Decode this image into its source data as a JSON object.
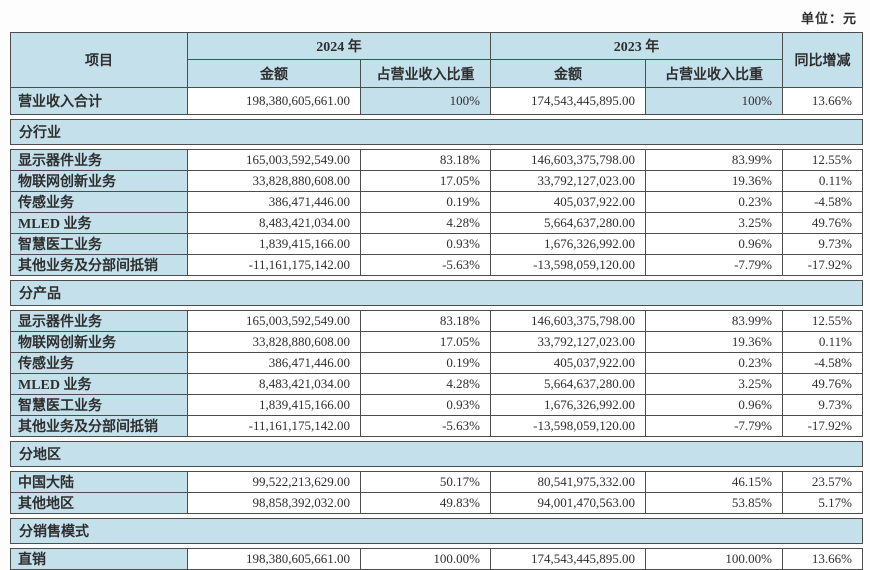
{
  "unit_label": "单位：元",
  "colors": {
    "accent_blue": "#c4e0eb",
    "border": "#4d4d4d"
  },
  "table": {
    "header": {
      "item": "项目",
      "year_2024": "2024 年",
      "year_2023": "2023 年",
      "amount": "金额",
      "proportion": "占营业收入比重",
      "yoy": "同比增减"
    },
    "rows": [
      {
        "type": "data",
        "tall": true,
        "hl": true,
        "label": "营业收入合计",
        "a24": "198,380,605,661.00",
        "p24": "100%",
        "a23": "174,543,445,895.00",
        "p23": "100%",
        "yoy": "13.66%"
      },
      {
        "type": "section",
        "label": "分行业"
      },
      {
        "type": "data",
        "label": "显示器件业务",
        "a24": "165,003,592,549.00",
        "p24": "83.18%",
        "a23": "146,603,375,798.00",
        "p23": "83.99%",
        "yoy": "12.55%"
      },
      {
        "type": "data",
        "label": "物联网创新业务",
        "a24": "33,828,880,608.00",
        "p24": "17.05%",
        "a23": "33,792,127,023.00",
        "p23": "19.36%",
        "yoy": "0.11%"
      },
      {
        "type": "data",
        "label": "传感业务",
        "a24": "386,471,446.00",
        "p24": "0.19%",
        "a23": "405,037,922.00",
        "p23": "0.23%",
        "yoy": "-4.58%"
      },
      {
        "type": "data",
        "label": "MLED 业务",
        "a24": "8,483,421,034.00",
        "p24": "4.28%",
        "a23": "5,664,637,280.00",
        "p23": "3.25%",
        "yoy": "49.76%"
      },
      {
        "type": "data",
        "label": "智慧医工业务",
        "a24": "1,839,415,166.00",
        "p24": "0.93%",
        "a23": "1,676,326,992.00",
        "p23": "0.96%",
        "yoy": "9.73%"
      },
      {
        "type": "data",
        "label": "其他业务及分部间抵销",
        "a24": "-11,161,175,142.00",
        "p24": "-5.63%",
        "a23": "-13,598,059,120.00",
        "p23": "-7.79%",
        "yoy": "-17.92%"
      },
      {
        "type": "section",
        "label": "分产品"
      },
      {
        "type": "data",
        "label": "显示器件业务",
        "a24": "165,003,592,549.00",
        "p24": "83.18%",
        "a23": "146,603,375,798.00",
        "p23": "83.99%",
        "yoy": "12.55%"
      },
      {
        "type": "data",
        "label": "物联网创新业务",
        "a24": "33,828,880,608.00",
        "p24": "17.05%",
        "a23": "33,792,127,023.00",
        "p23": "19.36%",
        "yoy": "0.11%"
      },
      {
        "type": "data",
        "label": "传感业务",
        "a24": "386,471,446.00",
        "p24": "0.19%",
        "a23": "405,037,922.00",
        "p23": "0.23%",
        "yoy": "-4.58%"
      },
      {
        "type": "data",
        "label": "MLED 业务",
        "a24": "8,483,421,034.00",
        "p24": "4.28%",
        "a23": "5,664,637,280.00",
        "p23": "3.25%",
        "yoy": "49.76%"
      },
      {
        "type": "data",
        "label": "智慧医工业务",
        "a24": "1,839,415,166.00",
        "p24": "0.93%",
        "a23": "1,676,326,992.00",
        "p23": "0.96%",
        "yoy": "9.73%"
      },
      {
        "type": "data",
        "label": "其他业务及分部间抵销",
        "a24": "-11,161,175,142.00",
        "p24": "-5.63%",
        "a23": "-13,598,059,120.00",
        "p23": "-7.79%",
        "yoy": "-17.92%"
      },
      {
        "type": "section",
        "label": "分地区"
      },
      {
        "type": "data",
        "label": "中国大陆",
        "a24": "99,522,213,629.00",
        "p24": "50.17%",
        "a23": "80,541,975,332.00",
        "p23": "46.15%",
        "yoy": "23.57%"
      },
      {
        "type": "data",
        "label": "其他地区",
        "a24": "98,858,392,032.00",
        "p24": "49.83%",
        "a23": "94,001,470,563.00",
        "p23": "53.85%",
        "yoy": "5.17%"
      },
      {
        "type": "section",
        "label": "分销售模式"
      },
      {
        "type": "data",
        "label": "直销",
        "a24": "198,380,605,661.00",
        "p24": "100.00%",
        "a23": "174,543,445,895.00",
        "p23": "100.00%",
        "yoy": "13.66%"
      }
    ]
  }
}
